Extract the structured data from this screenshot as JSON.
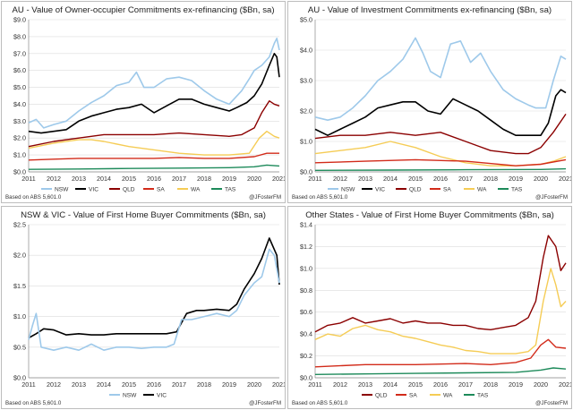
{
  "footer": {
    "source": "Based on ABS 5,601.0",
    "handle": "@JFosterFM"
  },
  "colors": {
    "NSW": "#9ec9ea",
    "VIC": "#000000",
    "QLD": "#8b0000",
    "SA": "#d22b1a",
    "WA": "#f5cc55",
    "TAS": "#1d8a5a"
  },
  "chart_data": [
    {
      "type": "line",
      "title": "AU - Value of Owner-occupier Commitments ex-refinancing ($Bn, sa)",
      "xlim": [
        2011,
        2021
      ],
      "ylim": [
        0,
        9
      ],
      "yticks": [
        "$0.0",
        "$1.0",
        "$2.0",
        "$3.0",
        "$4.0",
        "$5.0",
        "$6.0",
        "$7.0",
        "$8.0",
        "$9.0"
      ],
      "yvalues": [
        0,
        1,
        2,
        3,
        4,
        5,
        6,
        7,
        8,
        9
      ],
      "xticks": [
        "2011",
        "2012",
        "2013",
        "2014",
        "2015",
        "2016",
        "2017",
        "2018",
        "2019",
        "2020",
        "2021"
      ],
      "legend": [
        "NSW",
        "VIC",
        "QLD",
        "SA",
        "WA",
        "TAS"
      ],
      "series": [
        {
          "name": "NSW",
          "x": [
            2011,
            2011.3,
            2011.6,
            2012,
            2012.5,
            2013,
            2013.5,
            2014,
            2014.5,
            2015,
            2015.3,
            2015.6,
            2016,
            2016.5,
            2017,
            2017.5,
            2018,
            2018.5,
            2019,
            2019.5,
            2019.8,
            2020,
            2020.3,
            2020.6,
            2020.8,
            2020.9,
            2021
          ],
          "values": [
            2.9,
            3.1,
            2.6,
            2.8,
            3.0,
            3.6,
            4.1,
            4.5,
            5.1,
            5.3,
            5.9,
            5.0,
            5.0,
            5.5,
            5.6,
            5.4,
            4.8,
            4.3,
            4.0,
            4.8,
            5.5,
            6.0,
            6.3,
            6.8,
            7.6,
            7.9,
            7.2
          ]
        },
        {
          "name": "VIC",
          "x": [
            2011,
            2011.5,
            2012,
            2012.5,
            2013,
            2013.5,
            2014,
            2014.5,
            2015,
            2015.5,
            2016,
            2016.5,
            2017,
            2017.5,
            2018,
            2018.5,
            2019,
            2019.3,
            2019.7,
            2020,
            2020.3,
            2020.6,
            2020.8,
            2020.9,
            2021
          ],
          "values": [
            2.4,
            2.3,
            2.4,
            2.5,
            3.0,
            3.3,
            3.5,
            3.7,
            3.8,
            4.0,
            3.5,
            3.9,
            4.3,
            4.3,
            4.0,
            3.8,
            3.6,
            3.8,
            4.1,
            4.5,
            5.2,
            6.3,
            7.0,
            6.8,
            5.6
          ]
        },
        {
          "name": "QLD",
          "x": [
            2011,
            2012,
            2013,
            2014,
            2015,
            2016,
            2017,
            2018,
            2019,
            2019.5,
            2020,
            2020.3,
            2020.6,
            2020.8,
            2021
          ],
          "values": [
            1.5,
            1.8,
            2.0,
            2.2,
            2.2,
            2.2,
            2.3,
            2.2,
            2.1,
            2.2,
            2.6,
            3.5,
            4.2,
            4.0,
            3.9
          ]
        },
        {
          "name": "SA",
          "x": [
            2011,
            2012,
            2013,
            2014,
            2015,
            2016,
            2017,
            2018,
            2019,
            2020,
            2020.5,
            2021
          ],
          "values": [
            0.7,
            0.75,
            0.8,
            0.8,
            0.8,
            0.8,
            0.85,
            0.8,
            0.8,
            0.9,
            1.1,
            1.1
          ]
        },
        {
          "name": "WA",
          "x": [
            2011,
            2012,
            2013,
            2013.5,
            2014,
            2015,
            2016,
            2017,
            2018,
            2019,
            2019.8,
            2020.2,
            2020.5,
            2020.8,
            2021
          ],
          "values": [
            1.4,
            1.7,
            1.9,
            1.9,
            1.8,
            1.5,
            1.3,
            1.1,
            1.0,
            1.0,
            1.1,
            2.0,
            2.4,
            2.1,
            2.0
          ]
        },
        {
          "name": "TAS",
          "x": [
            2011,
            2013,
            2015,
            2017,
            2019,
            2020,
            2020.5,
            2021
          ],
          "values": [
            0.15,
            0.17,
            0.2,
            0.22,
            0.25,
            0.3,
            0.4,
            0.35
          ]
        }
      ]
    },
    {
      "type": "line",
      "title": "AU - Value of Investment Commitments ex-refinancing ($Bn, sa)",
      "xlim": [
        2011,
        2021
      ],
      "ylim": [
        0,
        5
      ],
      "yticks": [
        "$0.0",
        "$1.0",
        "$2.0",
        "$3.0",
        "$4.0",
        "$5.0"
      ],
      "yvalues": [
        0,
        1,
        2,
        3,
        4,
        5
      ],
      "xticks": [
        "2011",
        "2012",
        "2013",
        "2014",
        "2015",
        "2016",
        "2017",
        "2018",
        "2019",
        "2020",
        "2021"
      ],
      "legend": [
        "NSW",
        "VIC",
        "QLD",
        "SA",
        "WA",
        "TAS"
      ],
      "series": [
        {
          "name": "NSW",
          "x": [
            2011,
            2011.5,
            2012,
            2012.5,
            2013,
            2013.5,
            2014,
            2014.5,
            2015,
            2015.3,
            2015.6,
            2016,
            2016.4,
            2016.8,
            2017.2,
            2017.6,
            2018,
            2018.5,
            2019,
            2019.5,
            2019.8,
            2020.2,
            2020.5,
            2020.8,
            2021
          ],
          "values": [
            1.8,
            1.7,
            1.8,
            2.1,
            2.5,
            3.0,
            3.3,
            3.7,
            4.4,
            3.9,
            3.3,
            3.1,
            4.2,
            4.3,
            3.6,
            3.9,
            3.3,
            2.7,
            2.4,
            2.2,
            2.1,
            2.1,
            3.0,
            3.8,
            3.7
          ]
        },
        {
          "name": "VIC",
          "x": [
            2011,
            2011.5,
            2012,
            2012.5,
            2013,
            2013.5,
            2014,
            2014.5,
            2015,
            2015.5,
            2016,
            2016.5,
            2017,
            2017.5,
            2018,
            2018.5,
            2019,
            2019.5,
            2020,
            2020.3,
            2020.6,
            2020.8,
            2021
          ],
          "values": [
            1.4,
            1.2,
            1.4,
            1.6,
            1.8,
            2.1,
            2.2,
            2.3,
            2.3,
            2.0,
            1.9,
            2.4,
            2.2,
            2.0,
            1.7,
            1.4,
            1.2,
            1.2,
            1.2,
            1.6,
            2.5,
            2.7,
            2.6
          ]
        },
        {
          "name": "QLD",
          "x": [
            2011,
            2012,
            2013,
            2014,
            2015,
            2016,
            2017,
            2017.5,
            2018,
            2019,
            2019.5,
            2020,
            2020.5,
            2021
          ],
          "values": [
            1.1,
            1.2,
            1.2,
            1.3,
            1.2,
            1.3,
            1.0,
            0.85,
            0.7,
            0.6,
            0.6,
            0.8,
            1.3,
            1.9
          ]
        },
        {
          "name": "SA",
          "x": [
            2011,
            2013,
            2015,
            2017,
            2019,
            2020,
            2021
          ],
          "values": [
            0.3,
            0.35,
            0.4,
            0.35,
            0.2,
            0.25,
            0.4
          ]
        },
        {
          "name": "WA",
          "x": [
            2011,
            2012,
            2013,
            2014,
            2015,
            2016,
            2017,
            2018,
            2019,
            2020,
            2020.5,
            2021
          ],
          "values": [
            0.6,
            0.7,
            0.8,
            1.0,
            0.8,
            0.5,
            0.3,
            0.2,
            0.2,
            0.25,
            0.35,
            0.5
          ]
        },
        {
          "name": "TAS",
          "x": [
            2011,
            2014,
            2017,
            2020,
            2021
          ],
          "values": [
            0.05,
            0.06,
            0.07,
            0.08,
            0.1
          ]
        }
      ]
    },
    {
      "type": "line",
      "title": "NSW & VIC - Value of First Home Buyer Commitments ($Bn, sa)",
      "xlim": [
        2011,
        2021
      ],
      "ylim": [
        0,
        2.5
      ],
      "yticks": [
        "$0.0",
        "$0.5",
        "$1.0",
        "$1.5",
        "$2.0",
        "$2.5"
      ],
      "yvalues": [
        0,
        0.5,
        1.0,
        1.5,
        2.0,
        2.5
      ],
      "xticks": [
        "2011",
        "2012",
        "2013",
        "2014",
        "2015",
        "2016",
        "2017",
        "2018",
        "2019",
        "2020",
        "2021"
      ],
      "legend": [
        "NSW",
        "VIC"
      ],
      "series": [
        {
          "name": "NSW",
          "x": [
            2011,
            2011.15,
            2011.3,
            2011.5,
            2012,
            2012.5,
            2013,
            2013.5,
            2014,
            2014.5,
            2015,
            2015.5,
            2016,
            2016.5,
            2016.8,
            2017.1,
            2017.5,
            2018,
            2018.5,
            2019,
            2019.3,
            2019.6,
            2020,
            2020.3,
            2020.6,
            2020.8,
            2021
          ],
          "values": [
            0.62,
            0.85,
            1.05,
            0.5,
            0.45,
            0.5,
            0.45,
            0.55,
            0.45,
            0.5,
            0.5,
            0.48,
            0.5,
            0.5,
            0.55,
            0.95,
            0.95,
            1.0,
            1.05,
            1.0,
            1.1,
            1.35,
            1.55,
            1.65,
            2.1,
            2.0,
            1.55
          ]
        },
        {
          "name": "VIC",
          "x": [
            2011,
            2011.3,
            2011.6,
            2012,
            2012.5,
            2013,
            2013.5,
            2014,
            2014.5,
            2015,
            2015.5,
            2016,
            2016.5,
            2016.9,
            2017.3,
            2017.7,
            2018,
            2018.5,
            2019,
            2019.3,
            2019.6,
            2020,
            2020.3,
            2020.6,
            2020.9,
            2021
          ],
          "values": [
            0.65,
            0.72,
            0.8,
            0.78,
            0.7,
            0.72,
            0.7,
            0.7,
            0.72,
            0.72,
            0.72,
            0.72,
            0.72,
            0.75,
            1.05,
            1.1,
            1.1,
            1.12,
            1.1,
            1.2,
            1.45,
            1.7,
            1.95,
            2.28,
            2.0,
            1.52
          ]
        }
      ]
    },
    {
      "type": "line",
      "title": "Other States - Value of First Home Buyer Commitments ($Bn, sa)",
      "xlim": [
        2011,
        2021
      ],
      "ylim": [
        0,
        1.4
      ],
      "yticks": [
        "$0.0",
        "$0.2",
        "$0.4",
        "$0.6",
        "$0.8",
        "$1.0",
        "$1.2",
        "$1.4"
      ],
      "yvalues": [
        0,
        0.2,
        0.4,
        0.6,
        0.8,
        1.0,
        1.2,
        1.4
      ],
      "xticks": [
        "2011",
        "2012",
        "2013",
        "2014",
        "2015",
        "2016",
        "2017",
        "2018",
        "2019",
        "2020",
        "2021"
      ],
      "legend": [
        "QLD",
        "SA",
        "WA",
        "TAS"
      ],
      "series": [
        {
          "name": "QLD",
          "x": [
            2011,
            2011.5,
            2012,
            2012.5,
            2013,
            2013.5,
            2014,
            2014.5,
            2015,
            2015.5,
            2016,
            2016.5,
            2017,
            2017.5,
            2018,
            2018.5,
            2019,
            2019.5,
            2019.8,
            2020.1,
            2020.3,
            2020.6,
            2020.8,
            2021
          ],
          "values": [
            0.42,
            0.48,
            0.5,
            0.55,
            0.5,
            0.52,
            0.54,
            0.5,
            0.52,
            0.5,
            0.5,
            0.48,
            0.48,
            0.45,
            0.44,
            0.46,
            0.48,
            0.55,
            0.7,
            1.1,
            1.3,
            1.2,
            0.98,
            1.05
          ]
        },
        {
          "name": "SA",
          "x": [
            2011,
            2013,
            2015,
            2017,
            2018,
            2019,
            2019.6,
            2020,
            2020.3,
            2020.6,
            2021
          ],
          "values": [
            0.1,
            0.12,
            0.12,
            0.13,
            0.12,
            0.14,
            0.18,
            0.3,
            0.35,
            0.28,
            0.27
          ]
        },
        {
          "name": "WA",
          "x": [
            2011,
            2011.5,
            2012,
            2012.5,
            2013,
            2013.5,
            2014,
            2014.5,
            2015,
            2015.5,
            2016,
            2016.5,
            2017,
            2017.5,
            2018,
            2018.5,
            2019,
            2019.5,
            2019.8,
            2020.1,
            2020.4,
            2020.6,
            2020.8,
            2021
          ],
          "values": [
            0.35,
            0.4,
            0.38,
            0.45,
            0.48,
            0.44,
            0.42,
            0.38,
            0.36,
            0.33,
            0.3,
            0.28,
            0.25,
            0.24,
            0.22,
            0.22,
            0.22,
            0.24,
            0.3,
            0.7,
            1.0,
            0.85,
            0.65,
            0.7
          ]
        },
        {
          "name": "TAS",
          "x": [
            2011,
            2013,
            2015,
            2017,
            2019,
            2020,
            2020.5,
            2021
          ],
          "values": [
            0.03,
            0.035,
            0.04,
            0.045,
            0.05,
            0.07,
            0.09,
            0.08
          ]
        }
      ]
    }
  ]
}
